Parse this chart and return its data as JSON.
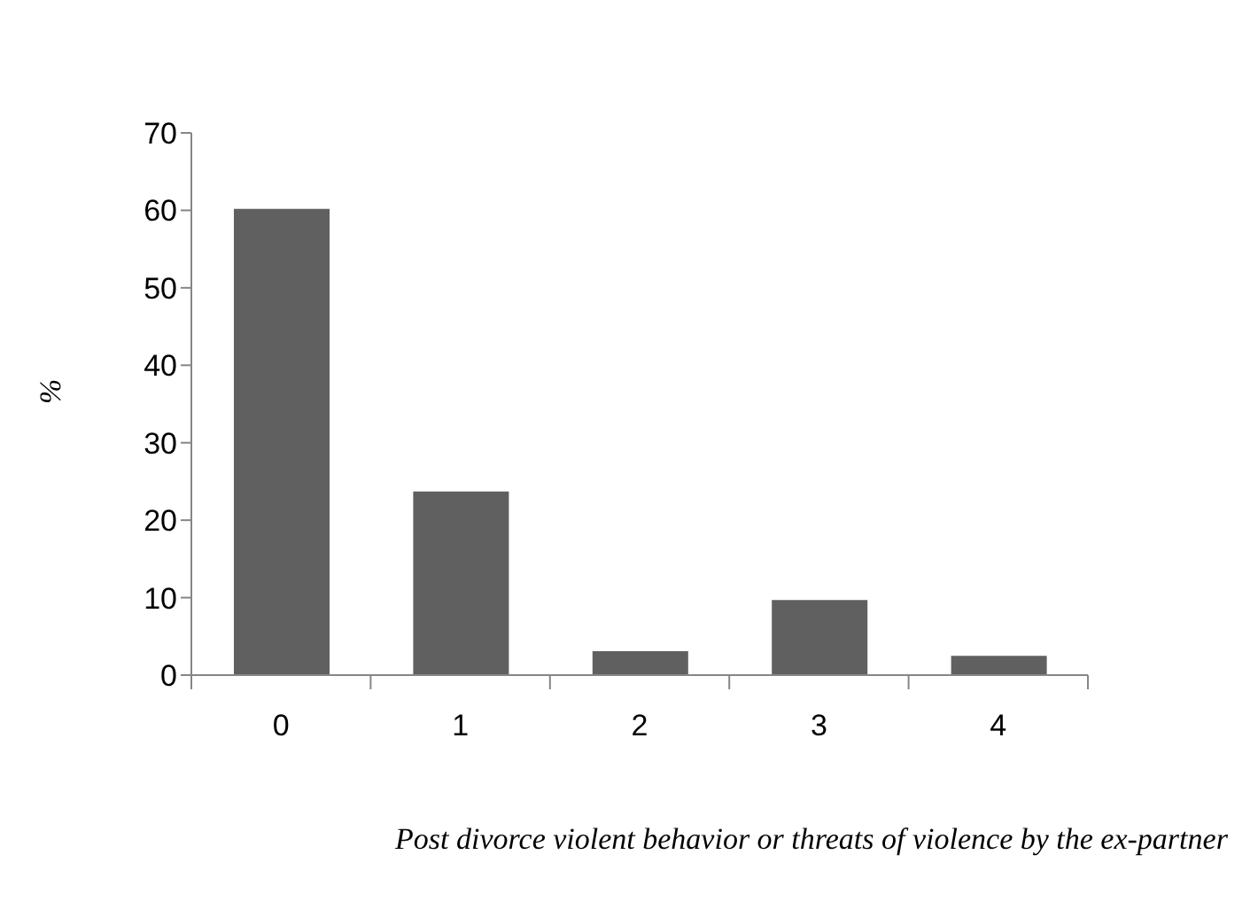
{
  "chart_data": {
    "type": "bar",
    "xlabel": "Post divorce violent behavior or threats of violence by the ex-partner",
    "ylabel": "%",
    "categories": [
      "0",
      "1",
      "2",
      "3",
      "4"
    ],
    "values": [
      60.2,
      23.7,
      3.1,
      9.7,
      2.5
    ],
    "color": "#606060",
    "ylim": [
      0,
      70
    ],
    "yticks": [
      0,
      10,
      20,
      30,
      40,
      50,
      60,
      70
    ],
    "grid": false,
    "legend": false
  }
}
